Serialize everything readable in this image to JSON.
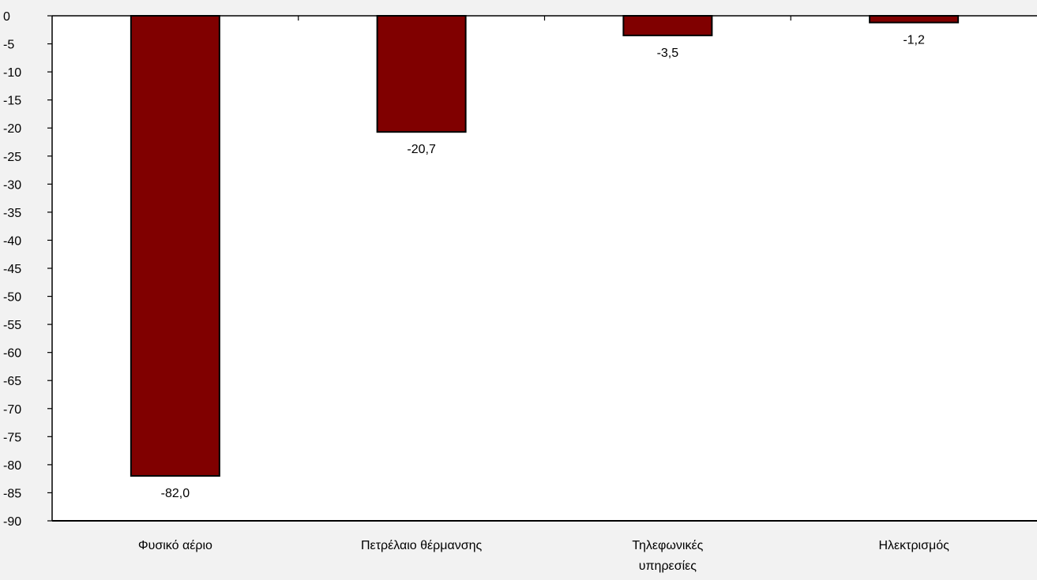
{
  "chart_data": {
    "type": "bar",
    "title": "",
    "xlabel": "",
    "ylabel": "",
    "categories": [
      [
        "Φυσικό αέριο"
      ],
      [
        "Πετρέλαιο θέρμανσης"
      ],
      [
        "Τηλεφωνικές",
        "υπηρεσίες"
      ],
      [
        "Ηλεκτρισμός"
      ]
    ],
    "values": [
      -82.0,
      -20.7,
      -3.5,
      -1.2
    ],
    "data_labels": [
      "-82,0",
      "-20,7",
      "-3,5",
      "-1,2"
    ],
    "ylim": [
      -90,
      0
    ],
    "yticks": [
      0,
      -5,
      -10,
      -15,
      -20,
      -25,
      -30,
      -35,
      -40,
      -45,
      -50,
      -55,
      -60,
      -65,
      -70,
      -75,
      -80,
      -85,
      -90
    ],
    "grid": false,
    "legend": "none",
    "bar_color": "#800000",
    "bar_outline_color": "#000000",
    "background_color": "#f2f2f2",
    "plot_background_color": "#ffffff"
  }
}
